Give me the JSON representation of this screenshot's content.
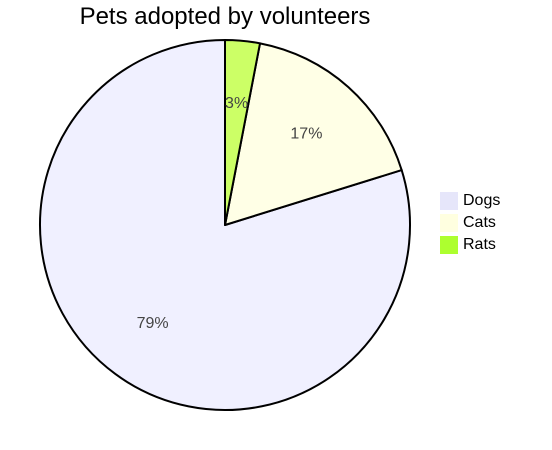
{
  "chart_data": {
    "type": "pie",
    "title": "Pets adopted by volunteers",
    "slices": [
      {
        "label": "Dogs",
        "value": 79,
        "value_label": "79%",
        "color": "#f0f0ff"
      },
      {
        "label": "Cats",
        "value": 17,
        "value_label": "17%",
        "color": "#ffffe6"
      },
      {
        "label": "Rats",
        "value": 3,
        "value_label": "3%",
        "color": "#ccff66"
      }
    ],
    "legend_swatch_colors": [
      "#e6e6fa",
      "#ffffe0",
      "#adff2f"
    ],
    "legend_position": "right",
    "start_angle_deg": 0,
    "direction": "counterclockwise",
    "outline_color": "#000000",
    "label_color": "#444444"
  }
}
